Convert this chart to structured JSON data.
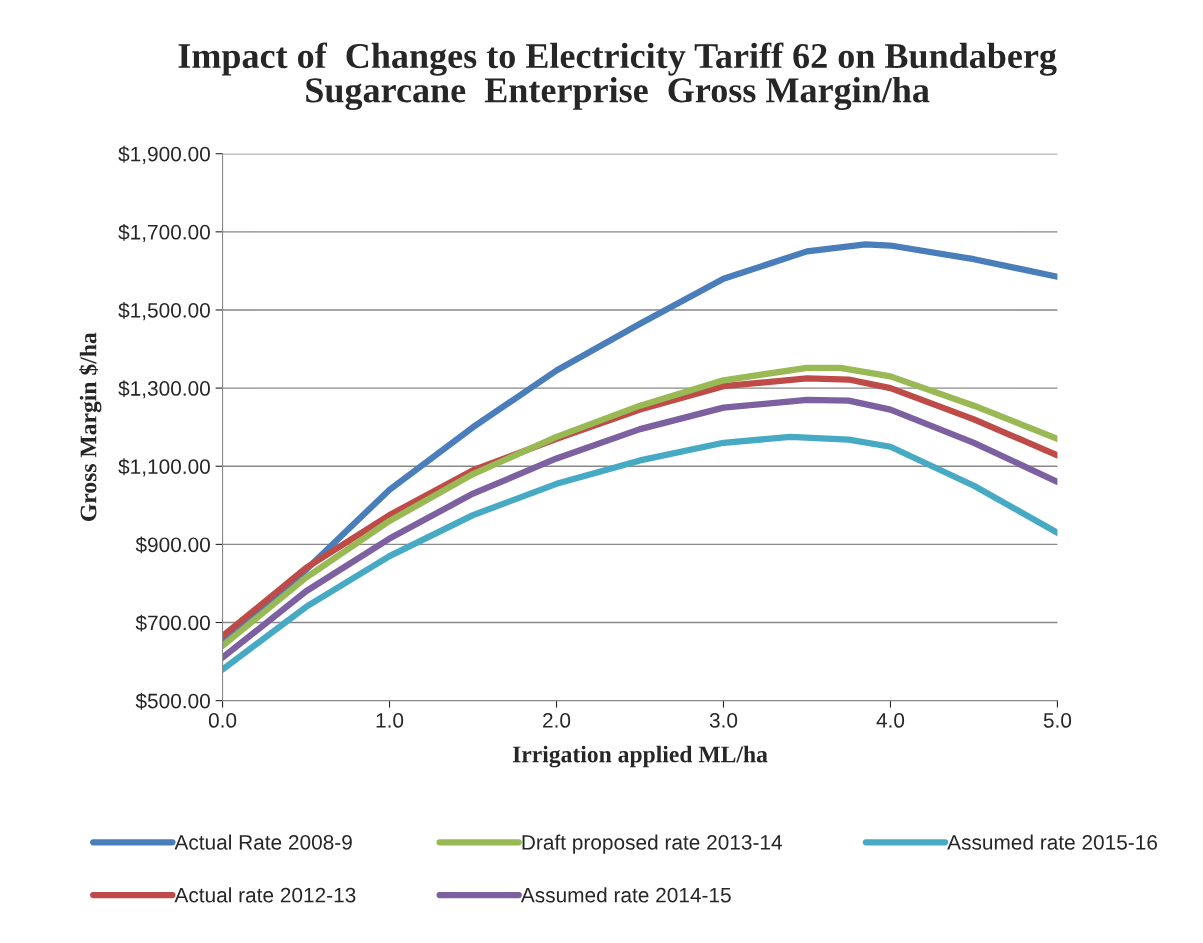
{
  "chart_data": {
    "type": "line",
    "title": "Impact of  Changes to Electricity Tariff 62 on Bundaberg\nSugarcane  Enterprise  Gross Margin/ha",
    "xlabel": "Irrigation applied ML/ha",
    "ylabel": "Gross Margin $/ha",
    "xlim": [
      0,
      5
    ],
    "xticks": [
      {
        "value": 0,
        "label": "0.0"
      },
      {
        "value": 1,
        "label": "1.0"
      },
      {
        "value": 2,
        "label": "2.0"
      },
      {
        "value": 3,
        "label": "3.0"
      },
      {
        "value": 4,
        "label": "4.0"
      },
      {
        "value": 5,
        "label": "5.0"
      }
    ],
    "ylim": [
      500,
      1900
    ],
    "yticks": [
      {
        "value": 500,
        "label": "$500.00"
      },
      {
        "value": 700,
        "label": "$700.00"
      },
      {
        "value": 900,
        "label": "$900.00"
      },
      {
        "value": 1100,
        "label": "$1,100.00"
      },
      {
        "value": 1300,
        "label": "$1,300.00"
      },
      {
        "value": 1500,
        "label": "$1,500.00"
      },
      {
        "value": 1700,
        "label": "$1,700.00"
      },
      {
        "value": 1900,
        "label": "$1,900.00"
      }
    ],
    "grid": "y",
    "legend": "bottom",
    "marker": "none",
    "line_style": "solid",
    "series": [
      {
        "name": "Actual Rate 2008-9",
        "color": "#4a7ebb",
        "x": [
          0,
          0.5,
          1,
          1.5,
          2,
          2.5,
          3,
          3.5,
          3.85,
          4,
          4.5,
          5
        ],
        "values": [
          655,
          835,
          1040,
          1200,
          1345,
          1465,
          1580,
          1650,
          1668,
          1665,
          1630,
          1585
        ]
      },
      {
        "name": "Actual rate 2012-13",
        "color": "#be4b48",
        "x": [
          0,
          0.5,
          1,
          1.5,
          2,
          2.5,
          3,
          3.5,
          3.75,
          4,
          4.5,
          5
        ],
        "values": [
          665,
          840,
          975,
          1090,
          1170,
          1245,
          1305,
          1325,
          1322,
          1300,
          1220,
          1128
        ]
      },
      {
        "name": "Draft proposed rate 2013-14",
        "color": "#98b954",
        "x": [
          0,
          0.5,
          1,
          1.5,
          2,
          2.5,
          3,
          3.5,
          3.7,
          4,
          4.5,
          5
        ],
        "values": [
          640,
          815,
          960,
          1080,
          1175,
          1255,
          1320,
          1352,
          1352,
          1330,
          1255,
          1170
        ]
      },
      {
        "name": "Assumed rate 2014-15",
        "color": "#7d60a0",
        "x": [
          0,
          0.5,
          1,
          1.5,
          2,
          2.5,
          3,
          3.5,
          3.75,
          4,
          4.5,
          5
        ],
        "values": [
          610,
          780,
          915,
          1030,
          1120,
          1195,
          1250,
          1270,
          1268,
          1245,
          1160,
          1060
        ]
      },
      {
        "name": "Assumed rate 2015-16",
        "color": "#46aac5",
        "x": [
          0,
          0.5,
          1,
          1.5,
          2,
          2.5,
          3,
          3.4,
          3.75,
          4,
          4.5,
          5
        ],
        "values": [
          580,
          740,
          870,
          975,
          1055,
          1115,
          1160,
          1175,
          1168,
          1150,
          1050,
          930
        ]
      }
    ]
  }
}
